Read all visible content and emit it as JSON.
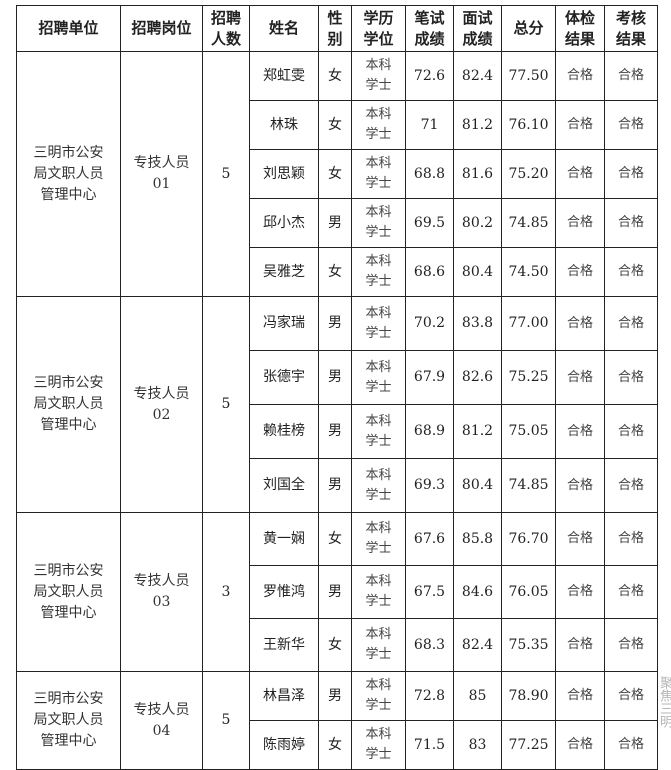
{
  "headers": [
    "招聘单位",
    "招聘岗位",
    "招聘人数",
    "姓名",
    "性别",
    "学历学位",
    "笔试成绩",
    "面试成绩",
    "总分",
    "体检结果",
    "考核结果"
  ],
  "header_lines": [
    [
      "招聘单位"
    ],
    [
      "招聘岗位"
    ],
    [
      "招聘",
      "人数"
    ],
    [
      "姓名"
    ],
    [
      "性",
      "别"
    ],
    [
      "学历",
      "学位"
    ],
    [
      "笔试",
      "成绩"
    ],
    [
      "面试",
      "成绩"
    ],
    [
      "总分"
    ],
    [
      "体检",
      "结果"
    ],
    [
      "考核",
      "结果"
    ]
  ],
  "groups": [
    {
      "unit_lines": [
        "三明市公安",
        "局文职人员",
        "管理中心"
      ],
      "post_lines": [
        "专技人员",
        "01"
      ],
      "count": "5",
      "rows": [
        {
          "name": "郑虹雯",
          "gender": "女",
          "edu": [
            "本科",
            "学士"
          ],
          "written": "72.6",
          "interview": "82.4",
          "total": "77.50",
          "medical": "合格",
          "assessment": "合格"
        },
        {
          "name": "林珠",
          "gender": "女",
          "edu": [
            "本科",
            "学士"
          ],
          "written": "71",
          "interview": "81.2",
          "total": "76.10",
          "medical": "合格",
          "assessment": "合格"
        },
        {
          "name": "刘思颖",
          "gender": "女",
          "edu": [
            "本科",
            "学士"
          ],
          "written": "68.8",
          "interview": "81.6",
          "total": "75.20",
          "medical": "合格",
          "assessment": "合格"
        },
        {
          "name": "邱小杰",
          "gender": "男",
          "edu": [
            "本科",
            "学士"
          ],
          "written": "69.5",
          "interview": "80.2",
          "total": "74.85",
          "medical": "合格",
          "assessment": "合格"
        },
        {
          "name": "吴雅芝",
          "gender": "女",
          "edu": [
            "本科",
            "学士"
          ],
          "written": "68.6",
          "interview": "80.4",
          "total": "74.50",
          "medical": "合格",
          "assessment": "合格"
        }
      ]
    },
    {
      "unit_lines": [
        "三明市公安",
        "局文职人员",
        "管理中心"
      ],
      "post_lines": [
        "专技人员",
        "02"
      ],
      "count": "5",
      "rows": [
        {
          "name": "冯家瑞",
          "gender": "男",
          "edu": [
            "本科",
            "学士"
          ],
          "written": "70.2",
          "interview": "83.8",
          "total": "77.00",
          "medical": "合格",
          "assessment": "合格"
        },
        {
          "name": "张德宇",
          "gender": "男",
          "edu": [
            "本科",
            "学士"
          ],
          "written": "67.9",
          "interview": "82.6",
          "total": "75.25",
          "medical": "合格",
          "assessment": "合格"
        },
        {
          "name": "赖桂榜",
          "gender": "男",
          "edu": [
            "本科",
            "学士"
          ],
          "written": "68.9",
          "interview": "81.2",
          "total": "75.05",
          "medical": "合格",
          "assessment": "合格"
        },
        {
          "name": "刘国全",
          "gender": "男",
          "edu": [
            "本科",
            "学士"
          ],
          "written": "69.3",
          "interview": "80.4",
          "total": "74.85",
          "medical": "合格",
          "assessment": "合格"
        }
      ]
    },
    {
      "unit_lines": [
        "三明市公安",
        "局文职人员",
        "管理中心"
      ],
      "post_lines": [
        "专技人员",
        "03"
      ],
      "count": "3",
      "rows": [
        {
          "name": "黄一娴",
          "gender": "女",
          "edu": [
            "本科",
            "学士"
          ],
          "written": "67.6",
          "interview": "85.8",
          "total": "76.70",
          "medical": "合格",
          "assessment": "合格"
        },
        {
          "name": "罗惟鸿",
          "gender": "男",
          "edu": [
            "本科",
            "学士"
          ],
          "written": "67.5",
          "interview": "84.6",
          "total": "76.05",
          "medical": "合格",
          "assessment": "合格"
        },
        {
          "name": "王新华",
          "gender": "女",
          "edu": [
            "本科",
            "学士"
          ],
          "written": "68.3",
          "interview": "82.4",
          "total": "75.35",
          "medical": "合格",
          "assessment": "合格"
        }
      ]
    },
    {
      "unit_lines": [
        "三明市公安",
        "局文职人员",
        "管理中心"
      ],
      "post_lines": [
        "专技人员",
        "04"
      ],
      "count": "5",
      "rows": [
        {
          "name": "林昌泽",
          "gender": "男",
          "edu": [
            "本科",
            "学士"
          ],
          "written": "72.8",
          "interview": "85",
          "total": "78.90",
          "medical": "合格",
          "assessment": "合格"
        },
        {
          "name": "陈雨婷",
          "gender": "女",
          "edu": [
            "本科",
            "学士"
          ],
          "written": "71.5",
          "interview": "83",
          "total": "77.25",
          "medical": "合格",
          "assessment": "合格"
        }
      ]
    }
  ],
  "watermark": "聚焦三明"
}
